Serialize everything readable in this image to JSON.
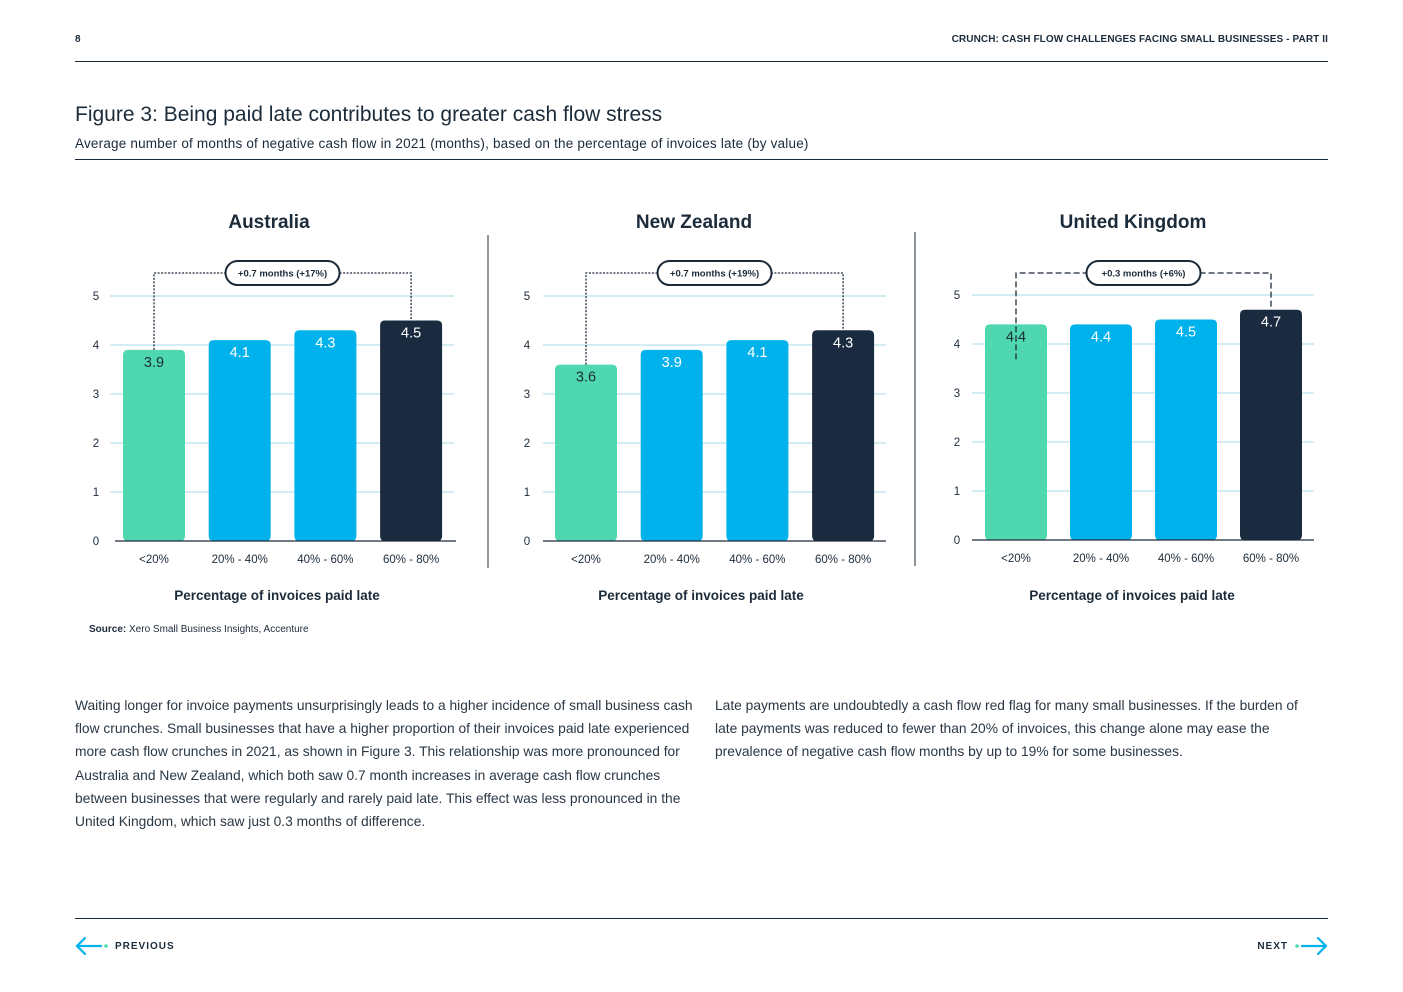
{
  "header": {
    "page_number": "8",
    "doc_title": "CRUNCH: CASH FLOW CHALLENGES FACING SMALL BUSINESSES - PART II"
  },
  "figure": {
    "title": "Figure 3: Being paid late contributes to greater cash flow stress",
    "subtitle": "Average number of months of negative cash flow in 2021 (months), based on the percentage of invoices late (by value)"
  },
  "chart_data": [
    {
      "type": "bar",
      "title": "Australia",
      "categories": [
        "<20%",
        "20% - 40%",
        "40% - 60%",
        "60% - 80%"
      ],
      "values": [
        3.9,
        4.1,
        4.3,
        4.5
      ],
      "bar_colors": [
        "#4fd8b0",
        "#00b2ec",
        "#00b2ec",
        "#1a2b3f"
      ],
      "xlabel": "Percentage of invoices paid late",
      "ylabel": "",
      "ylim": [
        0,
        5
      ],
      "yticks": [
        0,
        1,
        2,
        3,
        4,
        5
      ],
      "annotation": "+0.7 months (+17%)",
      "grid": true
    },
    {
      "type": "bar",
      "title": "New Zealand",
      "categories": [
        "<20%",
        "20% - 40%",
        "40% - 60%",
        "60% - 80%"
      ],
      "values": [
        3.6,
        3.9,
        4.1,
        4.3
      ],
      "bar_colors": [
        "#4fd8b0",
        "#00b2ec",
        "#00b2ec",
        "#1a2b3f"
      ],
      "xlabel": "Percentage of invoices paid late",
      "ylabel": "",
      "ylim": [
        0,
        5
      ],
      "yticks": [
        0,
        1,
        2,
        3,
        4,
        5
      ],
      "annotation": "+0.7 months (+19%)",
      "grid": true
    },
    {
      "type": "bar",
      "title": "United Kingdom",
      "categories": [
        "<20%",
        "20% - 40%",
        "40% - 60%",
        "60% - 80%"
      ],
      "values": [
        4.4,
        4.4,
        4.5,
        4.7
      ],
      "bar_colors": [
        "#4fd8b0",
        "#00b2ec",
        "#00b2ec",
        "#1a2b3f"
      ],
      "xlabel": "Percentage of invoices paid late",
      "ylabel": "",
      "ylim": [
        0,
        5
      ],
      "yticks": [
        0,
        1,
        2,
        3,
        4,
        5
      ],
      "annotation": "+0.3 months (+6%)",
      "grid": true
    }
  ],
  "source": {
    "label": "Source:",
    "text": "Xero Small Business Insights, Accenture"
  },
  "body": {
    "left": "Waiting longer for invoice payments unsurprisingly leads to a higher incidence of small business cash flow crunches. Small businesses that have a higher proportion of their invoices paid late experienced more cash flow crunches in 2021, as shown in Figure 3. This relationship was more pronounced for Australia and New Zealand, which both saw 0.7 month increases in average cash flow crunches between businesses that were regularly and rarely paid late. This effect was less pronounced in the United Kingdom, which saw just 0.3 months of difference.",
    "right": "Late payments are undoubtedly a cash flow red flag for many small businesses. If the burden of late payments was reduced to fewer than 20% of invoices, this change alone may ease the prevalence of negative cash flow months by up to 19% for some businesses."
  },
  "nav": {
    "previous": "PREVIOUS",
    "next": "NEXT"
  },
  "colors": {
    "grid": "#a8dbe8",
    "text": "#1c2b3a",
    "accent": "#00b2ec"
  }
}
